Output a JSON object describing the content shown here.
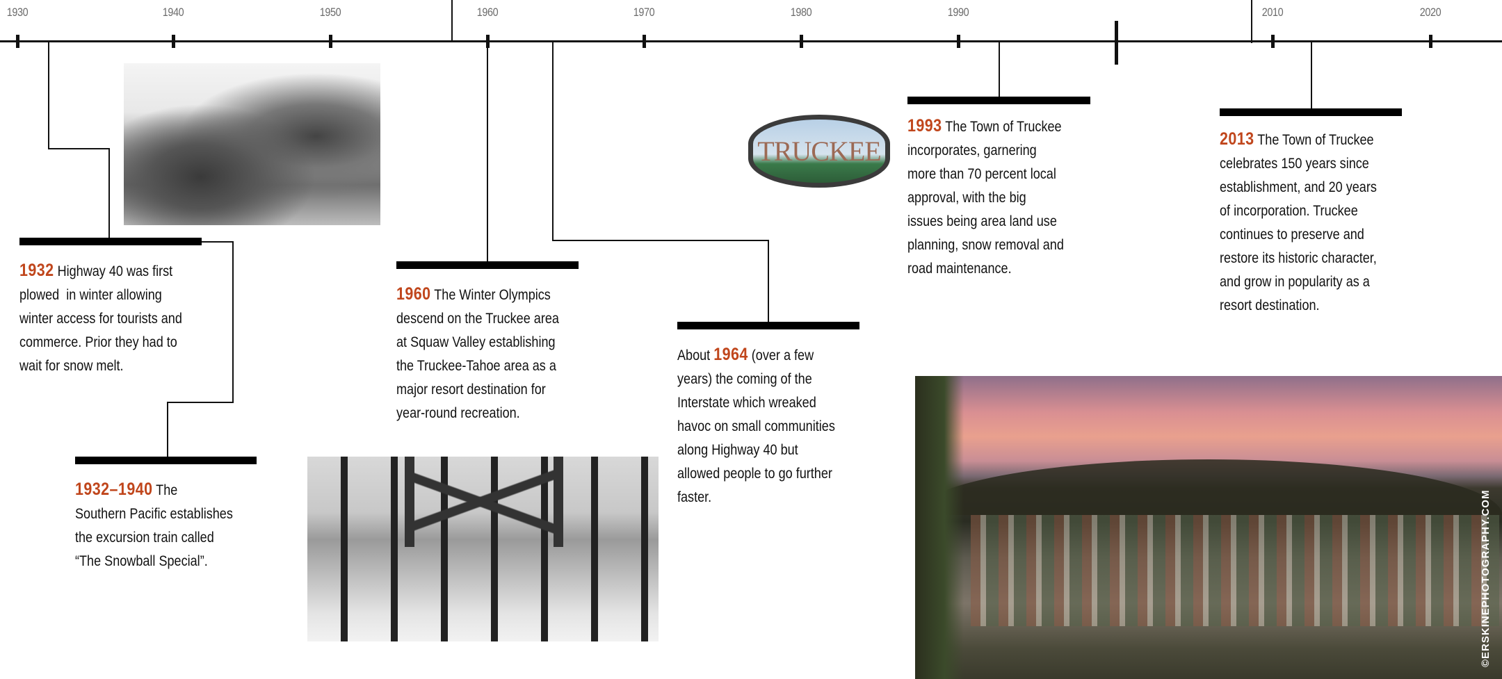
{
  "timeline": {
    "year_labels": [
      "1930",
      "1940",
      "1950",
      "1960",
      "1970",
      "1980",
      "1990",
      "2010",
      "2020"
    ]
  },
  "colors": {
    "accent": "#c0461c",
    "text": "#111111",
    "axis": "#111111"
  },
  "events": [
    {
      "year": "1932",
      "lines": [
        " Highway 40 was first",
        "plowed  in winter allowing",
        "winter access for tourists and",
        "commerce. Prior they had to",
        "wait for snow melt."
      ]
    },
    {
      "year": "1932–1940",
      "lines": [
        " The",
        "Southern Pacific establishes",
        "the excursion train called",
        "“The Snowball Special”."
      ]
    },
    {
      "year": "1960",
      "lines": [
        " The Winter Olympics",
        "descend on the Truckee area",
        "at Squaw Valley establishing",
        "the Truckee-Tahoe area as a",
        "major resort destination for",
        "year-round recreation."
      ]
    },
    {
      "prefix": "About ",
      "year": "1964",
      "lines": [
        " (over a few",
        "years) the coming of the",
        "Interstate which wreaked",
        "havoc on small communities",
        "along Highway 40 but",
        "allowed people to go further",
        "faster."
      ]
    },
    {
      "year": "1993",
      "lines": [
        " The Town of Truckee",
        "incorporates, garnering",
        "more than 70 percent local",
        "approval, with the big",
        "issues being area land use",
        "planning, snow removal and",
        "road maintenance."
      ]
    },
    {
      "year": "2013",
      "lines": [
        " The Town of Truckee",
        "celebrates 150 years since",
        "establishment, and 20 years",
        "of incorporation. Truckee",
        "continues to preserve and",
        "restore its historic character,",
        "and grow in popularity as a",
        "resort destination."
      ]
    }
  ],
  "images": {
    "logo_text": "TRUCKEE",
    "photo_credit": "©ERSKINEPHOTOGRAPHY.COM"
  }
}
